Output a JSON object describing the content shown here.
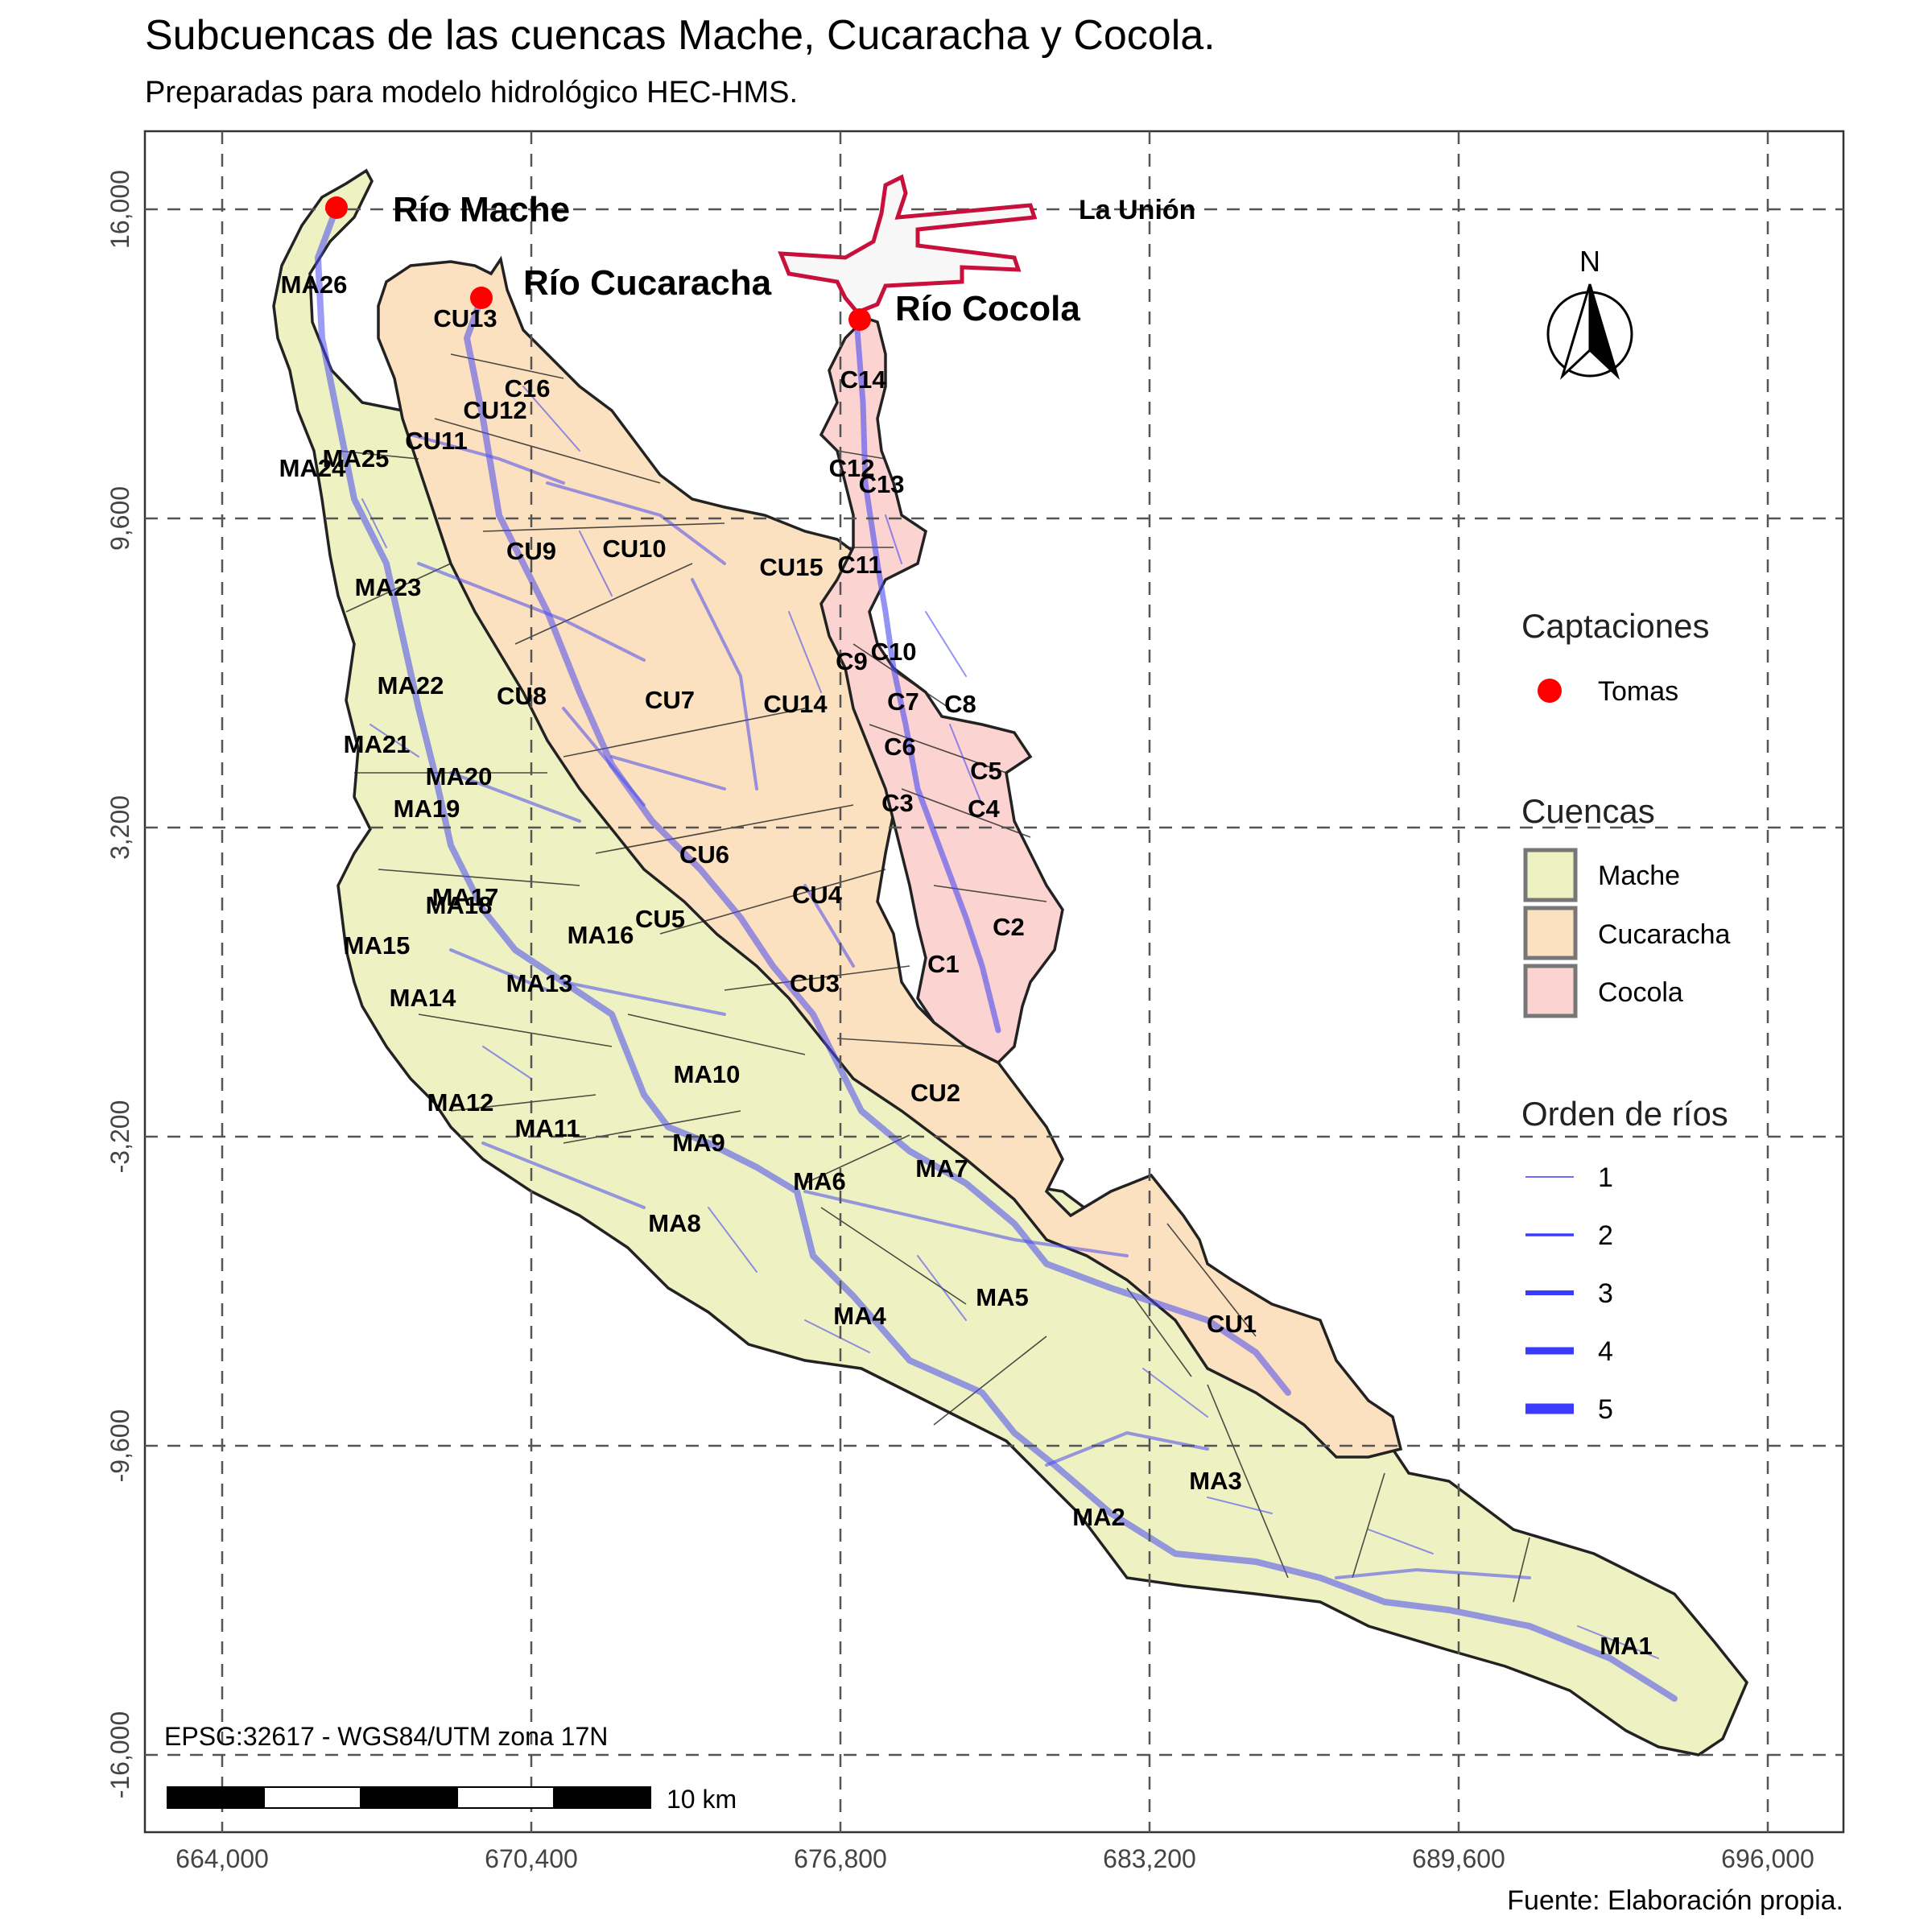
{
  "title": "Subcuencas de las cuencas Mache, Cucaracha y Cocola.",
  "subtitle": "Preparadas para modelo hidrológico HEC-HMS.",
  "caption": "Fuente: Elaboración propia.",
  "crs_note": "EPSG:32617 - WGS84/UTM zona 17N",
  "scale_label": "10 km",
  "north_label": "N",
  "axes": {
    "x_ticks": [
      "664,000",
      "670,400",
      "676,800",
      "683,200",
      "689,600",
      "696,000"
    ],
    "y_ticks": [
      "16,000",
      "9,600",
      "3,200",
      "-3,200",
      "-9,600",
      "-16,000"
    ]
  },
  "places": {
    "la_union": "La Unión",
    "intakes": [
      "Río Mache",
      "Río Cucaracha",
      "Río Cocola"
    ]
  },
  "legend": {
    "captaciones": {
      "title": "Captaciones",
      "items": [
        {
          "label": "Tomas",
          "color": "#ff0000"
        }
      ]
    },
    "cuencas": {
      "title": "Cuencas",
      "items": [
        {
          "label": "Mache",
          "color": "#eef2c2"
        },
        {
          "label": "Cucaracha",
          "color": "#fbe1c0"
        },
        {
          "label": "Cocola",
          "color": "#fbd3d1"
        }
      ]
    },
    "orden": {
      "title": "Orden de ríos",
      "items": [
        "1",
        "2",
        "3",
        "4",
        "5"
      ],
      "color": "#3b3bff"
    }
  },
  "subbasins": {
    "mache": [
      "MA1",
      "MA2",
      "MA3",
      "MA4",
      "MA5",
      "MA6",
      "MA7",
      "MA8",
      "MA9",
      "MA10",
      "MA11",
      "MA12",
      "MA13",
      "MA14",
      "MA15",
      "MA16",
      "MA17",
      "MA18",
      "MA19",
      "MA20",
      "MA21",
      "MA22",
      "MA23",
      "MA24",
      "MA25",
      "MA26"
    ],
    "cucaracha": [
      "CU1",
      "CU2",
      "CU3",
      "CU4",
      "CU5",
      "CU6",
      "CU7",
      "CU8",
      "CU9",
      "CU10",
      "CU11",
      "CU12",
      "CU13",
      "CU14",
      "CU15",
      "C16"
    ],
    "cocola": [
      "C1",
      "C2",
      "C3",
      "C4",
      "C5",
      "C6",
      "C7",
      "C8",
      "C9",
      "C10",
      "C11",
      "C12",
      "C13",
      "C14"
    ]
  },
  "colors": {
    "river": "#4b4bf0",
    "la_union": "#c8103c",
    "intake": "#ff0000"
  }
}
